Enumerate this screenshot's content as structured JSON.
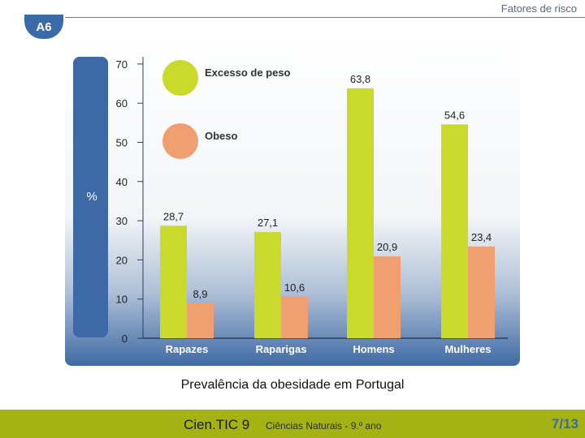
{
  "header": {
    "title": "Fatores de risco",
    "badge": "A6"
  },
  "caption": "Prevalência da obesidade em Portugal",
  "footer": {
    "brand": "Cien.TIC 9",
    "subtitle": "Ciências Naturais - 9.º ano",
    "page": "7/13"
  },
  "colors": {
    "series1": "#c9da2c",
    "series2": "#f0a070",
    "axis_band": "#3d6aa6",
    "badge": "#3b6aa8",
    "footer": "#a4b313"
  },
  "chart_data": {
    "type": "bar",
    "categories": [
      "Rapazes",
      "Raparigas",
      "Homens",
      "Mulheres"
    ],
    "series": [
      {
        "name": "Excesso de peso",
        "values": [
          28.7,
          27.1,
          63.8,
          54.6
        ],
        "labels": [
          "28,7",
          "27,1",
          "63,8",
          "54,6"
        ]
      },
      {
        "name": "Obeso",
        "values": [
          8.9,
          10.6,
          20.9,
          23.4
        ],
        "labels": [
          "8,9",
          "10,6",
          "20,9",
          "23,4"
        ]
      }
    ],
    "ylabel": "%",
    "ylim": [
      0,
      70
    ],
    "yticks": [
      0,
      10,
      20,
      30,
      40,
      50,
      60,
      70
    ],
    "legend": "top-left"
  }
}
